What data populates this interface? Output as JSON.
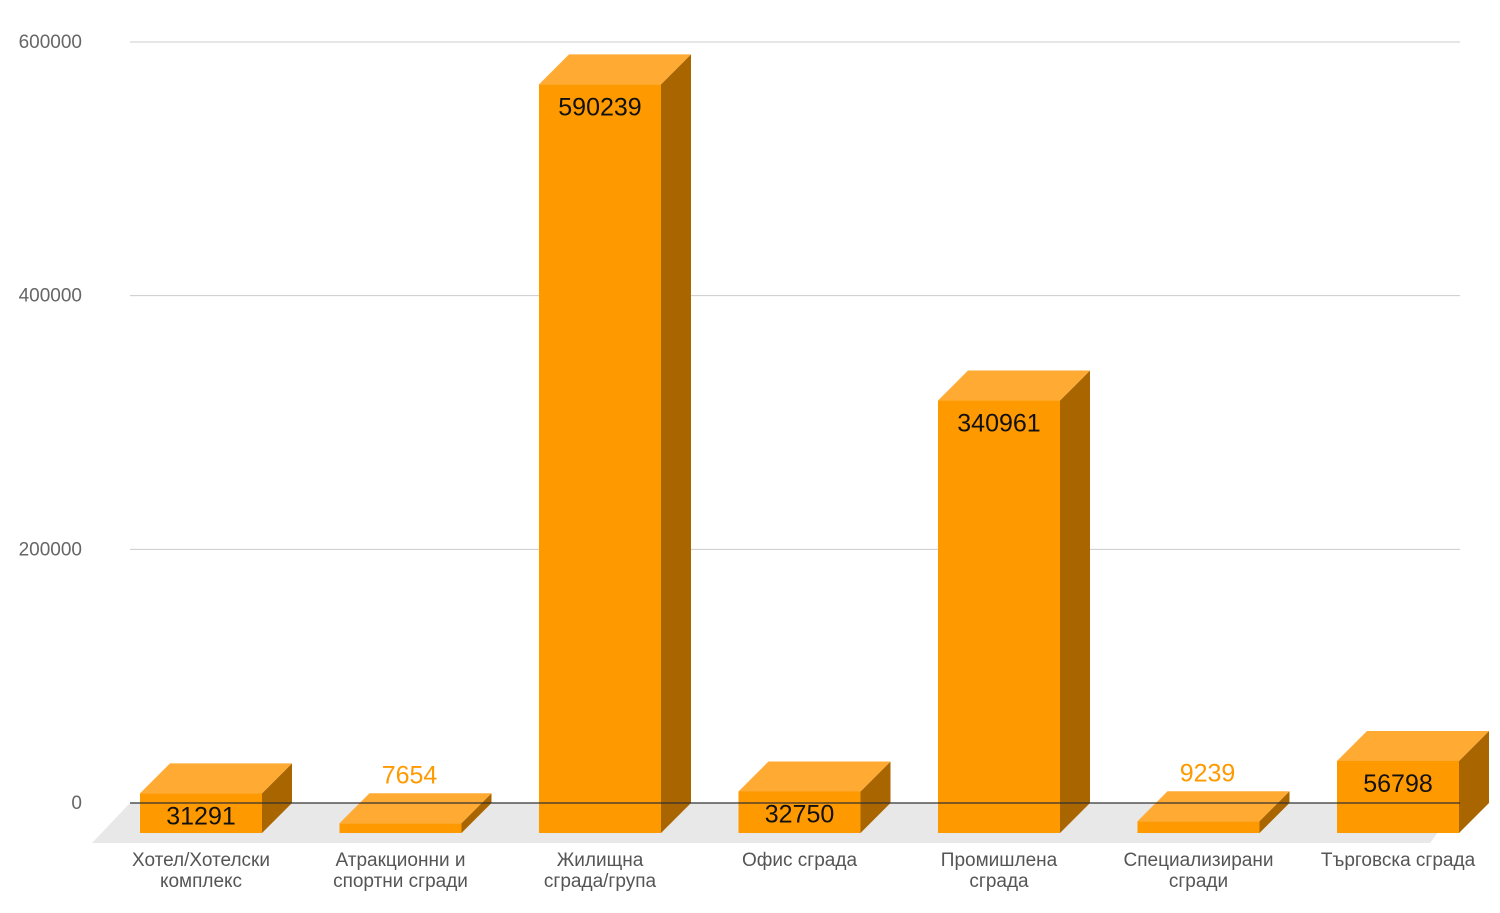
{
  "chart_data": {
    "type": "bar",
    "title": "",
    "xlabel": "",
    "ylabel": "",
    "ylim": [
      0,
      600000
    ],
    "yticks": [
      "0",
      "200000",
      "400000",
      "600000"
    ],
    "grid": true,
    "legend": "none",
    "style": "3d",
    "colors": {
      "front": "#ff9900",
      "top": "#ffaa33",
      "side": "#a86500",
      "floor": "#e8e8e8",
      "grid": "#cccccc",
      "baseline": "#333333",
      "label_inside": "#111111",
      "label_outside": "#ff9900"
    },
    "categories": [
      [
        "Хотел/Хотелски",
        "комплекс"
      ],
      [
        "Атракционни и",
        "спортни сгради"
      ],
      [
        "Жилищна",
        "сграда/група"
      ],
      [
        "Офис сграда"
      ],
      [
        "Промишлена",
        "сграда"
      ],
      [
        "Специализирани",
        "сгради"
      ],
      [
        "Търговска сграда"
      ]
    ],
    "series": [
      {
        "values": [
          31291,
          7654,
          590239,
          32750,
          340961,
          9239,
          56798
        ],
        "labels": [
          "31291",
          "7654",
          "590239",
          "32750",
          "340961",
          "9239",
          "56798"
        ]
      }
    ]
  }
}
